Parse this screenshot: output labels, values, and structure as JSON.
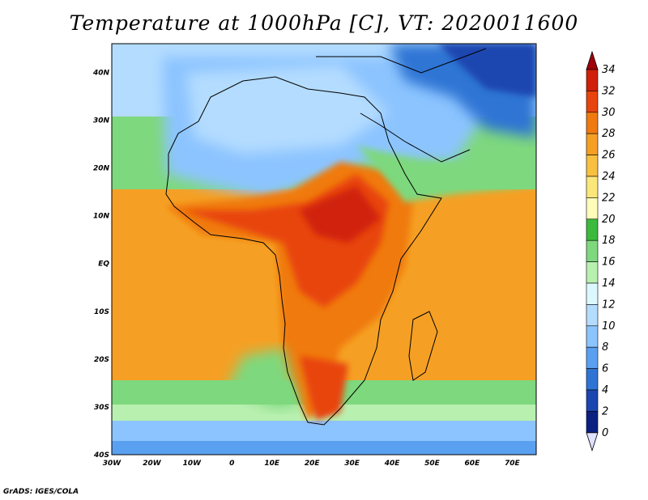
{
  "title": "Temperature at 1000hPa [C], VT: 2020011600",
  "credit": "GrADS: IGES/COLA",
  "map": {
    "lon_range": [
      -30,
      76
    ],
    "lat_range": [
      -40,
      46
    ],
    "lon_ticks": [
      "30W",
      "20W",
      "10W",
      "0",
      "10E",
      "20E",
      "30E",
      "40E",
      "50E",
      "60E",
      "70E"
    ],
    "lat_ticks": [
      "40N",
      "30N",
      "20N",
      "10N",
      "EQ",
      "10S",
      "20S",
      "30S",
      "40S"
    ]
  },
  "colorbar": {
    "labels": [
      "34",
      "32",
      "30",
      "28",
      "26",
      "24",
      "22",
      "20",
      "18",
      "16",
      "14",
      "12",
      "10",
      "8",
      "6",
      "4",
      "2",
      "0"
    ],
    "colors": [
      "#a0000a",
      "#d0200a",
      "#e8440d",
      "#f07a10",
      "#f5a024",
      "#f9c040",
      "#fbe67a",
      "#fffbb8",
      "#3cba3c",
      "#7ed87e",
      "#b8f0b0",
      "#dcf8ff",
      "#b4dcff",
      "#8cc4ff",
      "#5aa0f0",
      "#2f74d4",
      "#1a46b0",
      "#0c2080",
      "#e0e0ff"
    ]
  }
}
